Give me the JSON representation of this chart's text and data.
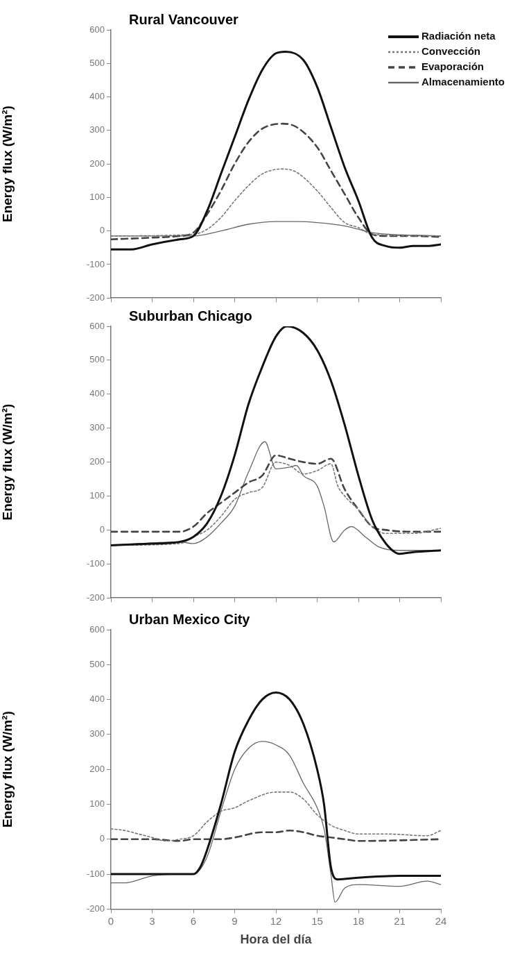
{
  "chart_data": [
    {
      "type": "line",
      "title": "Rural Vancouver",
      "ylabel": "Energy flux (W/m²)",
      "xlim": [
        0,
        24
      ],
      "xticks": [
        {
          "value": 0,
          "label": null
        },
        {
          "value": 3,
          "label": null
        },
        {
          "value": 6,
          "label": null
        },
        {
          "value": 9,
          "label": null
        },
        {
          "value": 12,
          "label": null
        },
        {
          "value": 15,
          "label": null
        },
        {
          "value": 18,
          "label": null
        },
        {
          "value": 21,
          "label": null
        },
        {
          "value": 24,
          "label": null
        }
      ],
      "ylim": [
        -200,
        600
      ],
      "yticks": [
        -200,
        -100,
        0,
        100,
        200,
        300,
        400,
        500,
        600
      ],
      "tick_labels": "y",
      "legend": "top right",
      "series": [
        {
          "name": "Radiación neta",
          "color": "#111111",
          "line_style": "solid",
          "x": [
            0,
            1.5,
            3,
            5,
            6,
            7,
            8,
            9,
            10,
            11,
            12,
            12.7,
            14,
            15,
            16,
            17,
            18,
            19,
            20,
            21,
            22,
            23,
            24
          ],
          "values": [
            -55,
            -55,
            -40,
            -25,
            -15,
            60,
            170,
            280,
            390,
            480,
            530,
            535,
            510,
            430,
            310,
            190,
            90,
            -20,
            -45,
            -50,
            -45,
            -45,
            -40
          ]
        },
        {
          "name": "Convección",
          "color": "#777777",
          "line_style": "dotted",
          "x": [
            0,
            6,
            7,
            8,
            9,
            10,
            11,
            12.5,
            13.5,
            15,
            16,
            17,
            18,
            19,
            24
          ],
          "values": [
            -15,
            -10,
            5,
            40,
            90,
            135,
            170,
            185,
            175,
            120,
            70,
            25,
            10,
            -10,
            -15
          ]
        },
        {
          "name": "Evaporación",
          "color": "#444444",
          "line_style": "dashed",
          "x": [
            0,
            3,
            5,
            6,
            7,
            8,
            9,
            10,
            11,
            12.5,
            13.5,
            15,
            16,
            17,
            18,
            19,
            20,
            22,
            24
          ],
          "values": [
            -25,
            -20,
            -15,
            -5,
            50,
            120,
            200,
            265,
            305,
            320,
            310,
            250,
            180,
            110,
            40,
            -10,
            -15,
            -15,
            -18
          ]
        },
        {
          "name": "Almacenamiento",
          "color": "#666666",
          "line_style": "solid",
          "x": [
            0,
            3,
            6,
            8,
            10,
            12,
            13.5,
            15,
            17,
            18,
            19,
            24
          ],
          "values": [
            -15,
            -15,
            -15,
            0,
            20,
            28,
            28,
            25,
            15,
            5,
            -5,
            -15
          ]
        }
      ]
    },
    {
      "type": "line",
      "title": "Suburban Chicago",
      "ylabel": "Energy flux (W/m²)",
      "xlim": [
        0,
        24
      ],
      "xticks": [
        {
          "value": 0,
          "label": null
        },
        {
          "value": 3,
          "label": null
        },
        {
          "value": 6,
          "label": null
        },
        {
          "value": 9,
          "label": null
        },
        {
          "value": 12,
          "label": null
        },
        {
          "value": 15,
          "label": null
        },
        {
          "value": 18,
          "label": null
        },
        {
          "value": 21,
          "label": null
        },
        {
          "value": 24,
          "label": null
        }
      ],
      "ylim": [
        -200,
        600
      ],
      "yticks": [
        -200,
        -100,
        0,
        100,
        200,
        300,
        400,
        500,
        600
      ],
      "tick_labels": "y",
      "series": [
        {
          "color": "#111111",
          "line_style": "solid",
          "x": [
            0,
            3,
            5,
            6,
            7,
            8,
            9,
            10,
            11,
            12,
            12.8,
            14,
            15,
            16,
            17,
            18,
            19,
            20,
            21,
            22,
            24
          ],
          "values": [
            -45,
            -40,
            -35,
            -20,
            20,
            100,
            220,
            370,
            480,
            570,
            600,
            580,
            530,
            440,
            310,
            160,
            30,
            -40,
            -70,
            -65,
            -60
          ]
        },
        {
          "color": "#777777",
          "line_style": "dotted",
          "x": [
            0,
            5,
            6,
            7,
            8,
            9,
            10,
            11,
            12,
            13,
            14,
            15,
            16,
            16.5,
            17,
            18,
            19,
            20,
            22,
            24
          ],
          "values": [
            -45,
            -40,
            -20,
            0,
            40,
            90,
            110,
            125,
            200,
            190,
            165,
            175,
            195,
            130,
            100,
            60,
            10,
            -10,
            -10,
            5
          ]
        },
        {
          "color": "#444444",
          "line_style": "dashed",
          "x": [
            0,
            5,
            6,
            7,
            8,
            9,
            10,
            11,
            12,
            13,
            14,
            15,
            16,
            17,
            18,
            19,
            20,
            22,
            24
          ],
          "values": [
            -5,
            -5,
            10,
            50,
            80,
            110,
            140,
            160,
            220,
            210,
            200,
            195,
            210,
            120,
            60,
            10,
            0,
            -5,
            -5
          ]
        },
        {
          "color": "#666666",
          "line_style": "solid",
          "x": [
            0,
            5,
            6,
            7,
            8,
            9,
            10,
            11.2,
            12,
            13,
            13.5,
            14,
            15,
            15.5,
            16.2,
            17,
            17.5,
            18.5,
            19.5,
            21,
            24
          ],
          "values": [
            -45,
            -35,
            -40,
            -20,
            20,
            70,
            170,
            260,
            180,
            185,
            190,
            160,
            130,
            70,
            -35,
            0,
            10,
            -20,
            -50,
            -60,
            -60
          ]
        }
      ]
    },
    {
      "type": "line",
      "title": "Urban Mexico City",
      "xlabel": "Hora del día",
      "ylabel": "Energy flux (W/m²)",
      "xlim": [
        0,
        24
      ],
      "xticks": [
        0,
        3,
        6,
        9,
        12,
        15,
        18,
        21,
        24
      ],
      "ylim": [
        -200,
        600
      ],
      "yticks": [
        -200,
        -100,
        0,
        100,
        200,
        300,
        400,
        500,
        600
      ],
      "series": [
        {
          "color": "#111111",
          "line_style": "solid",
          "x": [
            0,
            3,
            5,
            6,
            6.5,
            7,
            8,
            9,
            10,
            11,
            12,
            13,
            14,
            15,
            15.5,
            16,
            16.5,
            18,
            21,
            24
          ],
          "values": [
            -100,
            -100,
            -100,
            -100,
            -80,
            -30,
            100,
            250,
            340,
            400,
            420,
            400,
            330,
            200,
            100,
            -80,
            -115,
            -110,
            -105,
            -105
          ]
        },
        {
          "color": "#777777",
          "line_style": "dotted",
          "x": [
            0,
            1,
            2,
            3,
            4,
            5,
            6,
            7,
            8,
            9,
            10,
            12,
            13,
            14,
            15,
            16,
            17,
            18,
            20,
            23,
            24
          ],
          "values": [
            30,
            25,
            15,
            5,
            -5,
            0,
            10,
            50,
            80,
            90,
            110,
            135,
            135,
            115,
            70,
            40,
            25,
            15,
            15,
            10,
            25
          ]
        },
        {
          "color": "#444444",
          "line_style": "dashed",
          "x": [
            0,
            3,
            5,
            6,
            8,
            9,
            11,
            12,
            13,
            14,
            15,
            16,
            17,
            18,
            24
          ],
          "values": [
            0,
            0,
            -5,
            0,
            0,
            5,
            20,
            20,
            25,
            20,
            10,
            5,
            0,
            -5,
            0
          ]
        },
        {
          "color": "#666666",
          "line_style": "solid",
          "x": [
            0,
            1,
            3,
            5,
            6,
            7,
            8,
            9,
            10,
            11,
            12,
            13,
            14,
            15,
            15.5,
            16,
            16.3,
            17,
            18,
            21,
            23,
            24
          ],
          "values": [
            -125,
            -125,
            -105,
            -100,
            -100,
            -50,
            80,
            200,
            260,
            280,
            270,
            240,
            160,
            90,
            30,
            -100,
            -180,
            -140,
            -130,
            -135,
            -120,
            -130
          ]
        }
      ]
    }
  ]
}
